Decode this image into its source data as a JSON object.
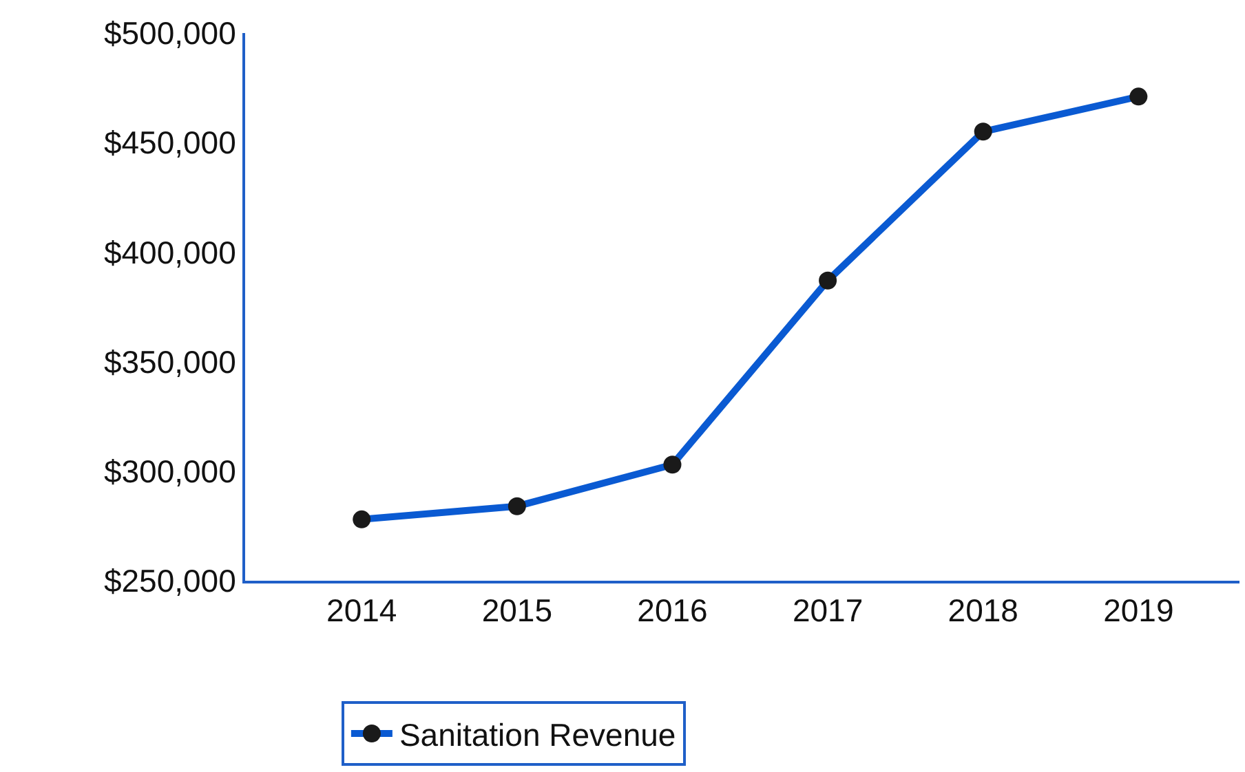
{
  "chart_data": {
    "type": "line",
    "categories": [
      "2014",
      "2015",
      "2016",
      "2017",
      "2018",
      "2019"
    ],
    "series": [
      {
        "name": "Sanitation Revenue",
        "color": "#0a5ad2",
        "values": [
          278000,
          284000,
          303000,
          387000,
          455000,
          471000
        ]
      }
    ],
    "ylim": [
      250000,
      500000
    ],
    "yticks": [
      {
        "value": 250000,
        "label": "$250,000"
      },
      {
        "value": 300000,
        "label": "$300,000"
      },
      {
        "value": 350000,
        "label": "$350,000"
      },
      {
        "value": 400000,
        "label": "$400,000"
      },
      {
        "value": 450000,
        "label": "$450,000"
      },
      {
        "value": 500000,
        "label": "$500,000"
      }
    ],
    "legend": "bottom",
    "marker": "circle",
    "line_style": "solid"
  }
}
